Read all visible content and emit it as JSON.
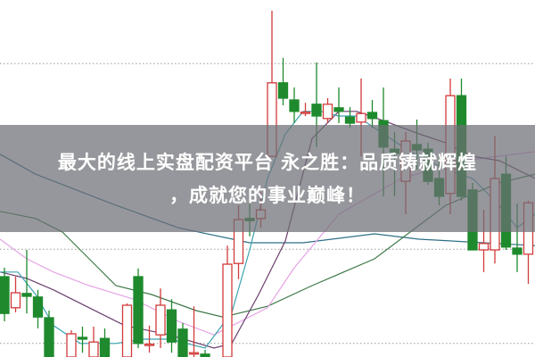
{
  "overlay": {
    "line1": "最大的线上实盘配资平台 永之胜：品质铸就辉煌",
    "line2": "，成就您的事业巅峰！"
  },
  "colors": {
    "up": "#d23a3a",
    "down": "#1e8a2d",
    "banner": "#6e6f76",
    "grid": "#9a9a9a"
  },
  "chart_data": {
    "type": "candlestick",
    "title": "",
    "xlabel": "",
    "ylabel": "",
    "ylim": [
      0,
      100
    ],
    "xlim": [
      -0.4,
      47.6
    ],
    "grid": true,
    "gridlines": [
      82.2,
      30.2,
      3.8
    ],
    "candles": [
      {
        "o": 22.5,
        "h": 25,
        "l": 10,
        "c": 12.2
      },
      {
        "o": 13.8,
        "h": 22.5,
        "l": 12.5,
        "c": 18
      },
      {
        "o": 17.8,
        "h": 30,
        "l": 12.2,
        "c": 17
      },
      {
        "o": 16.8,
        "h": 18.8,
        "l": 8,
        "c": 11.2
      },
      {
        "o": 11,
        "h": 13,
        "l": 0,
        "c": 0
      },
      null,
      {
        "o": 0,
        "h": 7.5,
        "l": 0,
        "c": 6.5
      },
      {
        "o": 5.5,
        "h": 8.5,
        "l": 1.2,
        "c": 5
      },
      {
        "o": 0,
        "h": 8.5,
        "l": 0,
        "c": 4.2
      },
      {
        "o": 5.2,
        "h": 8,
        "l": 0,
        "c": 0
      },
      null,
      {
        "o": 0,
        "h": 15,
        "l": 0,
        "c": 14.5
      },
      {
        "o": 22.5,
        "h": 24.8,
        "l": 2.5,
        "c": 3.8
      },
      {
        "o": 3.5,
        "h": 8.8,
        "l": 1.2,
        "c": 3.6
      },
      {
        "o": 6.2,
        "h": 19.2,
        "l": 2.5,
        "c": 14.5
      },
      {
        "o": 13.2,
        "h": 16.2,
        "l": 1.2,
        "c": 4.2
      },
      {
        "o": 7.8,
        "h": 9.5,
        "l": 0,
        "c": 0
      },
      {
        "o": 1,
        "h": 14.2,
        "l": 0,
        "c": 1.2
      },
      {
        "o": 0.8,
        "h": 2,
        "l": 0,
        "c": 0
      },
      null,
      {
        "o": 0,
        "h": 31.2,
        "l": 0,
        "c": 26
      },
      {
        "o": 26.2,
        "h": 42.5,
        "l": 21.8,
        "c": 38.5
      },
      {
        "o": 38.8,
        "h": 45,
        "l": 33.8,
        "c": 38.2
      },
      {
        "o": 38.8,
        "h": 46.2,
        "l": 36.2,
        "c": 41.2
      },
      {
        "o": 56.2,
        "h": 97,
        "l": 56.2,
        "c": 76.8
      },
      {
        "o": 76.8,
        "h": 83.8,
        "l": 70.5,
        "c": 72.5
      },
      {
        "o": 72,
        "h": 75.5,
        "l": 65.5,
        "c": 68.8
      },
      {
        "o": 68.5,
        "h": 71.2,
        "l": 67.5,
        "c": 68.6
      },
      {
        "o": 70.8,
        "h": 82.5,
        "l": 58.8,
        "c": 67.5
      },
      {
        "o": 66.8,
        "h": 72.5,
        "l": 65.5,
        "c": 70.8
      },
      {
        "o": 69.8,
        "h": 75.5,
        "l": 65.5,
        "c": 68.8
      },
      {
        "o": 67.2,
        "h": 70,
        "l": 64.2,
        "c": 65.5
      },
      {
        "o": 65.8,
        "h": 78,
        "l": 56.2,
        "c": 68.2
      },
      {
        "o": 68.5,
        "h": 72,
        "l": 64.2,
        "c": 66.8
      },
      {
        "o": 66.2,
        "h": 75.5,
        "l": 45,
        "c": 58.8
      },
      {
        "o": 58.2,
        "h": 63,
        "l": 45,
        "c": 57
      },
      {
        "o": 49.2,
        "h": 63,
        "l": 40,
        "c": 60.5
      },
      {
        "o": 59.5,
        "h": 66.5,
        "l": 52.5,
        "c": 58
      },
      {
        "o": 58.2,
        "h": 60,
        "l": 48.2,
        "c": 49.2
      },
      {
        "o": 50,
        "h": 56.2,
        "l": 42.5,
        "c": 45
      },
      {
        "o": 45.8,
        "h": 78,
        "l": 40,
        "c": 73.2
      },
      {
        "o": 73.2,
        "h": 78,
        "l": 43.8,
        "c": 45
      },
      {
        "o": 46.8,
        "h": 48.8,
        "l": 30,
        "c": 30
      },
      {
        "o": 30,
        "h": 41.2,
        "l": 23.8,
        "c": 31.8
      },
      {
        "o": 30,
        "h": 62,
        "l": 26.2,
        "c": 50
      },
      {
        "o": 51.2,
        "h": 56.2,
        "l": 30,
        "c": 30.8
      },
      {
        "o": 30.5,
        "h": 43,
        "l": 23.8,
        "c": 28.8
      },
      {
        "o": 28.8,
        "h": 43.8,
        "l": 20.5,
        "c": 43.2
      }
    ],
    "lines": [
      {
        "color": "#2e6f86",
        "points": [
          [
            -0.4,
            56.8
          ],
          [
            2.8,
            51.2
          ],
          [
            10,
            42.5
          ],
          [
            15.6,
            36.2
          ],
          [
            22,
            32
          ],
          [
            26.8,
            32
          ],
          [
            33.2,
            34.5
          ],
          [
            37.2,
            33
          ],
          [
            47.6,
            31.2
          ]
        ]
      },
      {
        "color": "#3f7a4a",
        "points": [
          [
            -0.4,
            40.8
          ],
          [
            2.8,
            38.8
          ],
          [
            5.2,
            35
          ],
          [
            7.6,
            27.5
          ],
          [
            10,
            20
          ],
          [
            13.2,
            17.5
          ],
          [
            17.2,
            13
          ],
          [
            19.6,
            11.2
          ],
          [
            23.6,
            14.2
          ],
          [
            27.6,
            20
          ],
          [
            33.2,
            27.5
          ],
          [
            39.6,
            42.5
          ],
          [
            44.4,
            48.8
          ],
          [
            47.6,
            51.2
          ]
        ]
      },
      {
        "color": "#e7a3e6",
        "points": [
          [
            -0.4,
            33
          ],
          [
            2,
            27.5
          ],
          [
            4.4,
            23.8
          ],
          [
            7.6,
            20
          ],
          [
            11.6,
            16.2
          ],
          [
            15.6,
            10
          ],
          [
            18.8,
            6.2
          ],
          [
            21.2,
            10
          ],
          [
            23.6,
            13.8
          ],
          [
            26,
            25
          ],
          [
            30,
            40
          ],
          [
            35.6,
            50
          ],
          [
            41.2,
            55
          ],
          [
            47.6,
            57.5
          ]
        ]
      },
      {
        "color": "#6b3f6e",
        "points": [
          [
            -0.4,
            23.8
          ],
          [
            2,
            22
          ],
          [
            4.4,
            18.8
          ],
          [
            7.6,
            13.8
          ],
          [
            10.8,
            8.8
          ],
          [
            14.8,
            6.2
          ],
          [
            18.8,
            2.5
          ],
          [
            20.4,
            3.8
          ],
          [
            22.8,
            17.5
          ],
          [
            25.2,
            32.5
          ],
          [
            27.6,
            61.2
          ],
          [
            30,
            68.8
          ],
          [
            31.6,
            68.8
          ],
          [
            34,
            66.2
          ],
          [
            37.2,
            62.5
          ],
          [
            39.6,
            60
          ],
          [
            42,
            56.2
          ],
          [
            44.4,
            55
          ],
          [
            47.6,
            50
          ]
        ]
      },
      {
        "color": "#3aa3b0",
        "points": [
          [
            -0.4,
            23.8
          ],
          [
            1.2,
            23.8
          ],
          [
            2.8,
            17.5
          ],
          [
            4.4,
            8.8
          ],
          [
            6.8,
            3.8
          ],
          [
            10,
            3.8
          ],
          [
            12.4,
            5
          ],
          [
            14.8,
            5
          ],
          [
            18,
            2.5
          ],
          [
            20.4,
            12.5
          ],
          [
            22,
            30
          ],
          [
            23.6,
            50
          ],
          [
            25.2,
            62.5
          ],
          [
            26.8,
            68.8
          ],
          [
            28.4,
            68.8
          ],
          [
            30,
            67.5
          ],
          [
            31.6,
            67.5
          ],
          [
            34,
            62.5
          ],
          [
            36.4,
            57.5
          ],
          [
            39.6,
            52.5
          ],
          [
            42,
            50
          ],
          [
            44.4,
            42.5
          ],
          [
            46,
            36.2
          ],
          [
            47.6,
            40
          ]
        ]
      }
    ]
  }
}
